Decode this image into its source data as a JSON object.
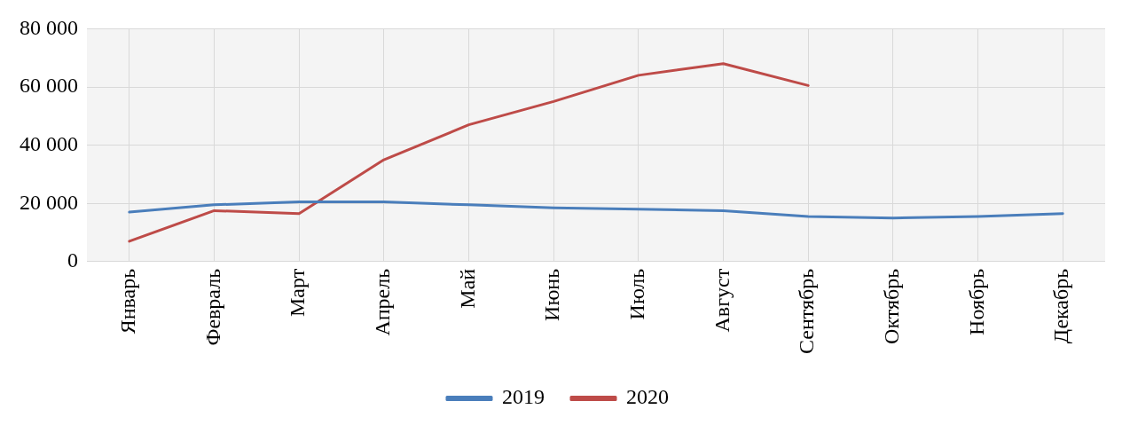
{
  "chart_data": {
    "type": "line",
    "categories": [
      "Январь",
      "Февраль",
      "Март",
      "Апрель",
      "Май",
      "Июнь",
      "Июль",
      "Август",
      "Сентябрь",
      "Октябрь",
      "Ноябрь",
      "Декабрь"
    ],
    "series": [
      {
        "name": "2019",
        "color": "#4a7ebb",
        "values": [
          17000,
          19500,
          20500,
          20500,
          19500,
          18500,
          18000,
          17500,
          15500,
          15000,
          15500,
          16500
        ]
      },
      {
        "name": "2020",
        "color": "#be4b48",
        "values": [
          7000,
          17500,
          16500,
          35000,
          47000,
          55000,
          64000,
          68000,
          60500,
          null,
          null,
          null
        ]
      }
    ],
    "ylim": [
      0,
      80000
    ],
    "yticks": [
      {
        "value": 0,
        "label": "0"
      },
      {
        "value": 20000,
        "label": "20 000"
      },
      {
        "value": 40000,
        "label": "40 000"
      },
      {
        "value": 60000,
        "label": "60 000"
      },
      {
        "value": 80000,
        "label": "80 000"
      }
    ],
    "grid": true,
    "legend": "bottom",
    "marker": "none",
    "line_style": "solid"
  }
}
